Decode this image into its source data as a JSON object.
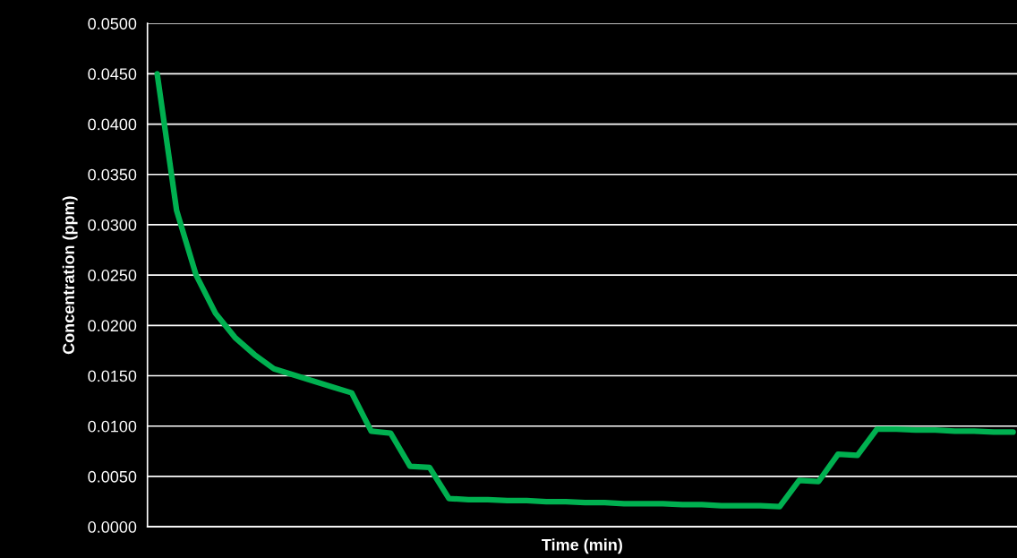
{
  "chart_data": {
    "type": "line",
    "xlabel": "Time (min)",
    "ylabel": "Concentration (ppm)",
    "categories": [
      null,
      null,
      null,
      null,
      null,
      null,
      null,
      null,
      null,
      null,
      null,
      null,
      null,
      null,
      null,
      null,
      null,
      null,
      null,
      null,
      null,
      null,
      null,
      null,
      null,
      null,
      null,
      null,
      null,
      null,
      null,
      null,
      null,
      null,
      null,
      null,
      null,
      null,
      null,
      null,
      null,
      null,
      null,
      null,
      null
    ],
    "series": [
      {
        "color": "#00b050",
        "values": [
          0.045,
          0.0314,
          0.025,
          0.0212,
          0.0188,
          0.0171,
          0.0157,
          0.0151,
          0.0145,
          0.0139,
          0.0133,
          0.0095,
          0.0093,
          0.006,
          0.0059,
          0.0028,
          0.0027,
          0.0027,
          0.0026,
          0.0026,
          0.0025,
          0.0025,
          0.0024,
          0.0024,
          0.0023,
          0.0023,
          0.0023,
          0.0022,
          0.0022,
          0.0021,
          0.0021,
          0.0021,
          0.002,
          0.0046,
          0.0045,
          0.0072,
          0.0071,
          0.0097,
          0.0097,
          0.0096,
          0.0096,
          0.0095,
          0.0095,
          0.0094,
          0.0094
        ]
      }
    ],
    "ylim": [
      0,
      0.05
    ],
    "yticks": [
      {
        "value": 0,
        "label": "0.0000"
      },
      {
        "value": 0.005,
        "label": "0.0050"
      },
      {
        "value": 0.01,
        "label": "0.0100"
      },
      {
        "value": 0.015,
        "label": "0.0150"
      },
      {
        "value": 0.02,
        "label": "0.0200"
      },
      {
        "value": 0.025,
        "label": "0.0250"
      },
      {
        "value": 0.03,
        "label": "0.0300"
      },
      {
        "value": 0.035,
        "label": "0.0350"
      },
      {
        "value": 0.04,
        "label": "0.0400"
      },
      {
        "value": 0.045,
        "label": "0.0450"
      },
      {
        "value": 0.05,
        "label": "0.0500"
      }
    ],
    "grid": "y",
    "tick_labels": "y",
    "line_style": "solid"
  }
}
